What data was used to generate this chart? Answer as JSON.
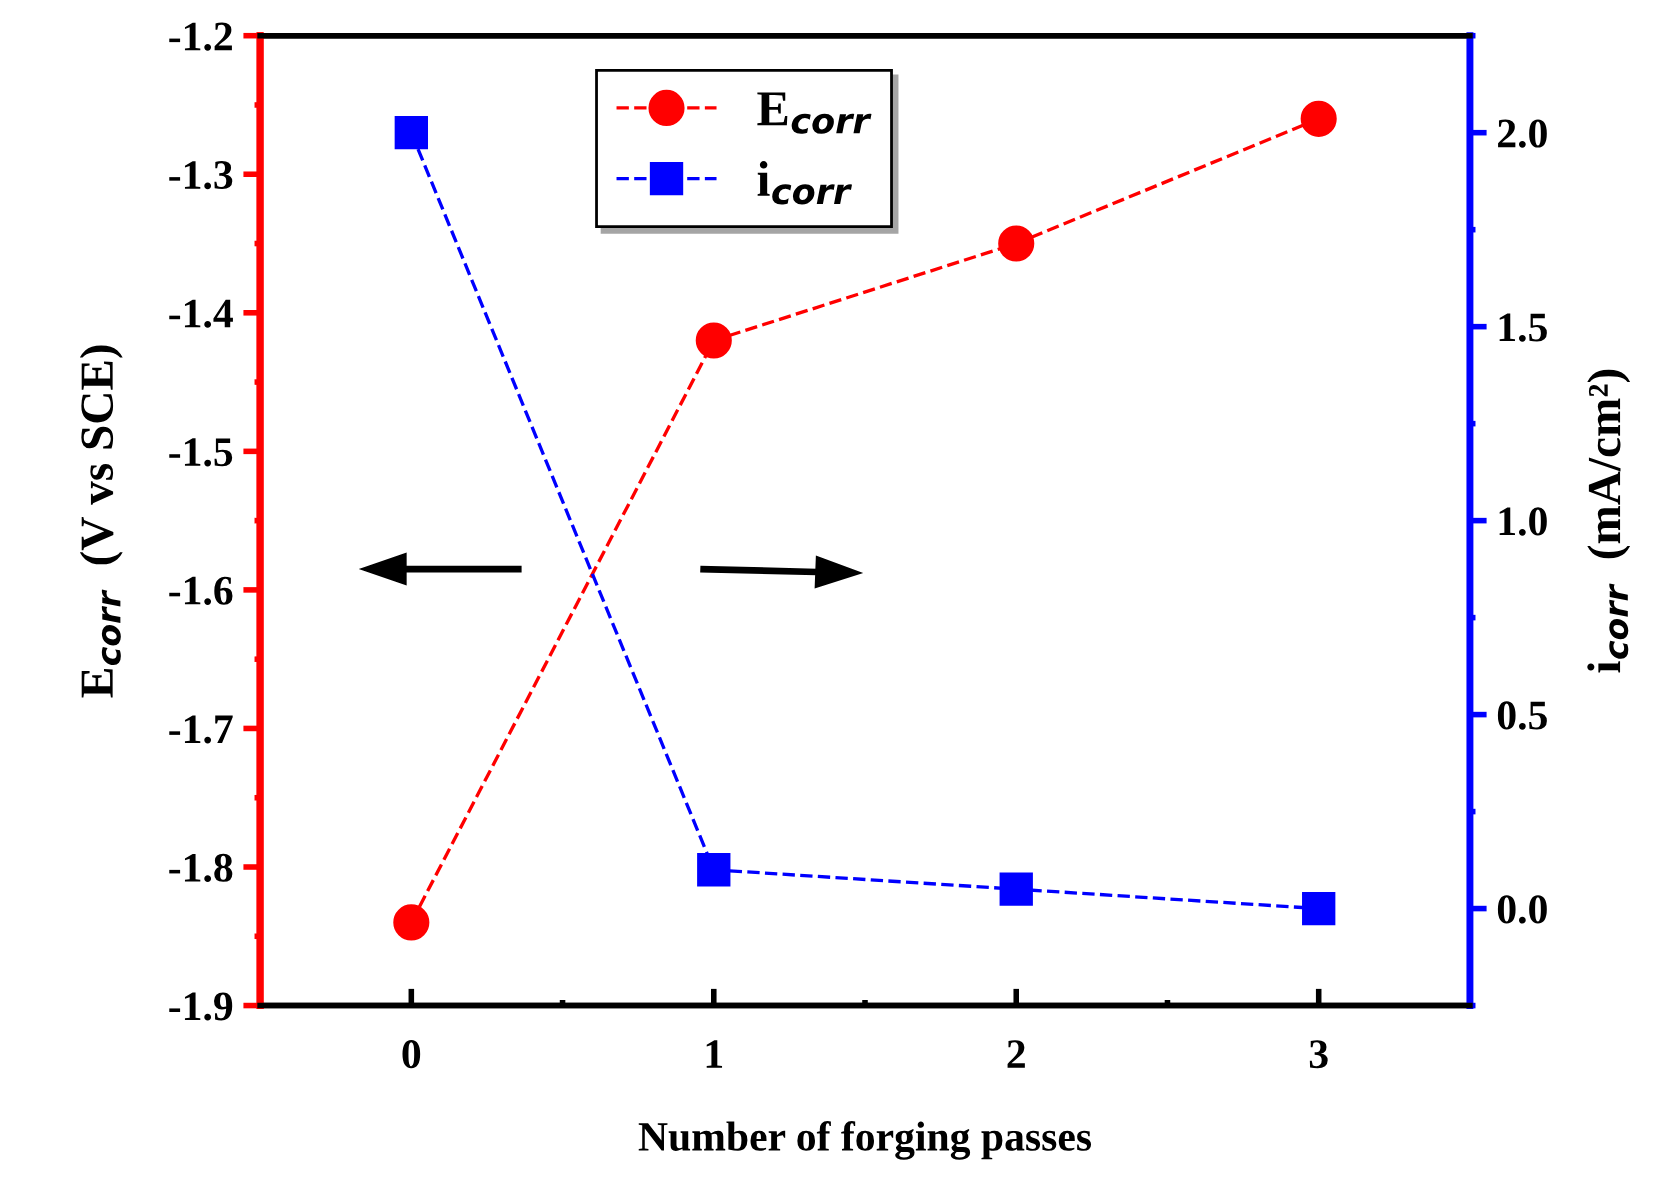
{
  "chart_data": {
    "type": "line",
    "xlabel": "Number of forging passes",
    "ylabel": "E$_{corr}$  (V vs SCE)",
    "y2label": "i$_{corr}$  (mA/cm²)",
    "x": [
      0,
      1,
      2,
      3
    ],
    "xlim": [
      -0.5,
      3.5
    ],
    "xticks": [
      0,
      1,
      2,
      3
    ],
    "ylim": [
      -1.9,
      -1.2
    ],
    "yticks": [
      {
        "value": -1.9,
        "label": "-1.9"
      },
      {
        "value": -1.8,
        "label": "-1.8"
      },
      {
        "value": -1.7,
        "label": "-1.7"
      },
      {
        "value": -1.6,
        "label": "-1.6"
      },
      {
        "value": -1.5,
        "label": "-1.5"
      },
      {
        "value": -1.4,
        "label": "-1.4"
      },
      {
        "value": -1.3,
        "label": "-1.3"
      },
      {
        "value": -1.2,
        "label": "-1.2"
      }
    ],
    "y2lim": [
      -0.25,
      2.25
    ],
    "y2ticks": [
      {
        "value": 0,
        "label": "0.0"
      },
      {
        "value": 0.5,
        "label": "0.5"
      },
      {
        "value": 1,
        "label": "1.0"
      },
      {
        "value": 1.5,
        "label": "1.5"
      },
      {
        "value": 2,
        "label": "2.0"
      }
    ],
    "series": [
      {
        "name": "E$_{corr}$",
        "color": "#ff0000",
        "values": [
          -1.84,
          -1.42,
          -1.35,
          -1.26
        ],
        "marker": "circle",
        "line_style": "dashed"
      },
      {
        "name": "i$_{corr}$",
        "color": "#0000ff",
        "values": [
          2.0,
          0.1,
          0.05,
          0.0
        ],
        "axis": "y2",
        "marker": "square",
        "line_style": "dashed"
      }
    ],
    "legend": "top",
    "grid": false
  }
}
